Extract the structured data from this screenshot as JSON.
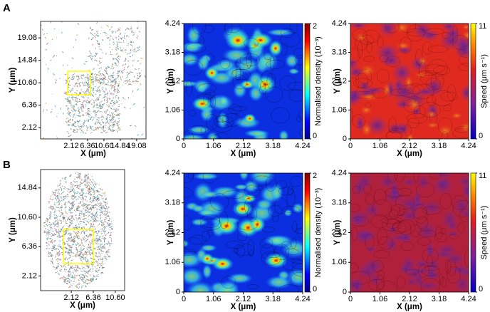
{
  "panel_labels": [
    "A",
    "B"
  ],
  "chart_data": [
    {
      "type": "scatter",
      "xlabel": "X (μm)",
      "ylabel": "Y (μm)",
      "xlim": [
        -5.8,
        21.5
      ],
      "ylim": [
        0,
        22.2
      ],
      "xticks": [
        2.12,
        6.36,
        {
          "value": 10.6,
          "label": "10.60"
        },
        14.84,
        19.08
      ],
      "yticks": [
        2.12,
        6.36,
        {
          "value": 10.6,
          "label": "10.60"
        },
        14.84,
        19.08
      ]
    },
    {
      "type": "heatmap",
      "xlabel": "X (μm)",
      "ylabel": "Y (μm)",
      "xlim": [
        0,
        4.24
      ],
      "ylim": [
        0,
        4.24
      ],
      "xticks": [
        0,
        1.06,
        2.12,
        3.18,
        4.24
      ],
      "yticks": [
        0,
        1.06,
        2.12,
        3.18,
        4.24
      ],
      "colorbar": {
        "label": "Normalised density (10⁻³)",
        "lim": [
          0,
          2
        ],
        "ticks": [
          0,
          2
        ]
      }
    },
    {
      "type": "speedmap",
      "xlabel": "X (μm)",
      "ylabel": "Y (μm)",
      "xlim": [
        0,
        4.24
      ],
      "ylim": [
        0,
        4.24
      ],
      "xticks": [
        0,
        1.06,
        2.12,
        3.18,
        4.24
      ],
      "yticks": [
        0,
        1.06,
        2.12,
        3.18,
        4.24
      ],
      "colorbar": {
        "label": "Speed (μm s⁻¹)",
        "lim": [
          0,
          11
        ],
        "ticks": [
          0,
          11
        ]
      }
    },
    {
      "type": "scatter",
      "xlabel": "X (μm)",
      "ylabel": "Y (μm)",
      "xlim": [
        -3.8,
        12.4
      ],
      "ylim": [
        0,
        17.5
      ],
      "xticks": [
        2.12,
        6.36,
        {
          "value": 10.6,
          "label": "10.60"
        }
      ],
      "yticks": [
        2.12,
        6.36,
        {
          "value": 10.6,
          "label": "10.60"
        },
        14.84
      ]
    },
    {
      "type": "heatmap",
      "xlabel": "X (μm)",
      "ylabel": "Y (μm)",
      "xlim": [
        0,
        4.24
      ],
      "ylim": [
        0,
        4.24
      ],
      "xticks": [
        0,
        1.06,
        2.12,
        3.18,
        4.24
      ],
      "yticks": [
        0,
        1.06,
        2.12,
        3.18,
        4.24
      ],
      "colorbar": {
        "label": "Normalised density (10⁻³)",
        "lim": [
          0,
          2
        ],
        "ticks": [
          0,
          2
        ]
      }
    },
    {
      "type": "speedmap",
      "xlabel": "X (μm)",
      "ylabel": "Y (μm)",
      "xlim": [
        0,
        4.24
      ],
      "ylim": [
        0,
        4.24
      ],
      "xticks": [
        0,
        1.06,
        2.12,
        3.18,
        4.24
      ],
      "yticks": [
        0,
        1.06,
        2.12,
        3.18,
        4.24
      ],
      "colorbar": {
        "label": "Speed (μm s⁻¹)",
        "lim": [
          0,
          11
        ],
        "ticks": [
          0,
          11
        ]
      }
    }
  ]
}
